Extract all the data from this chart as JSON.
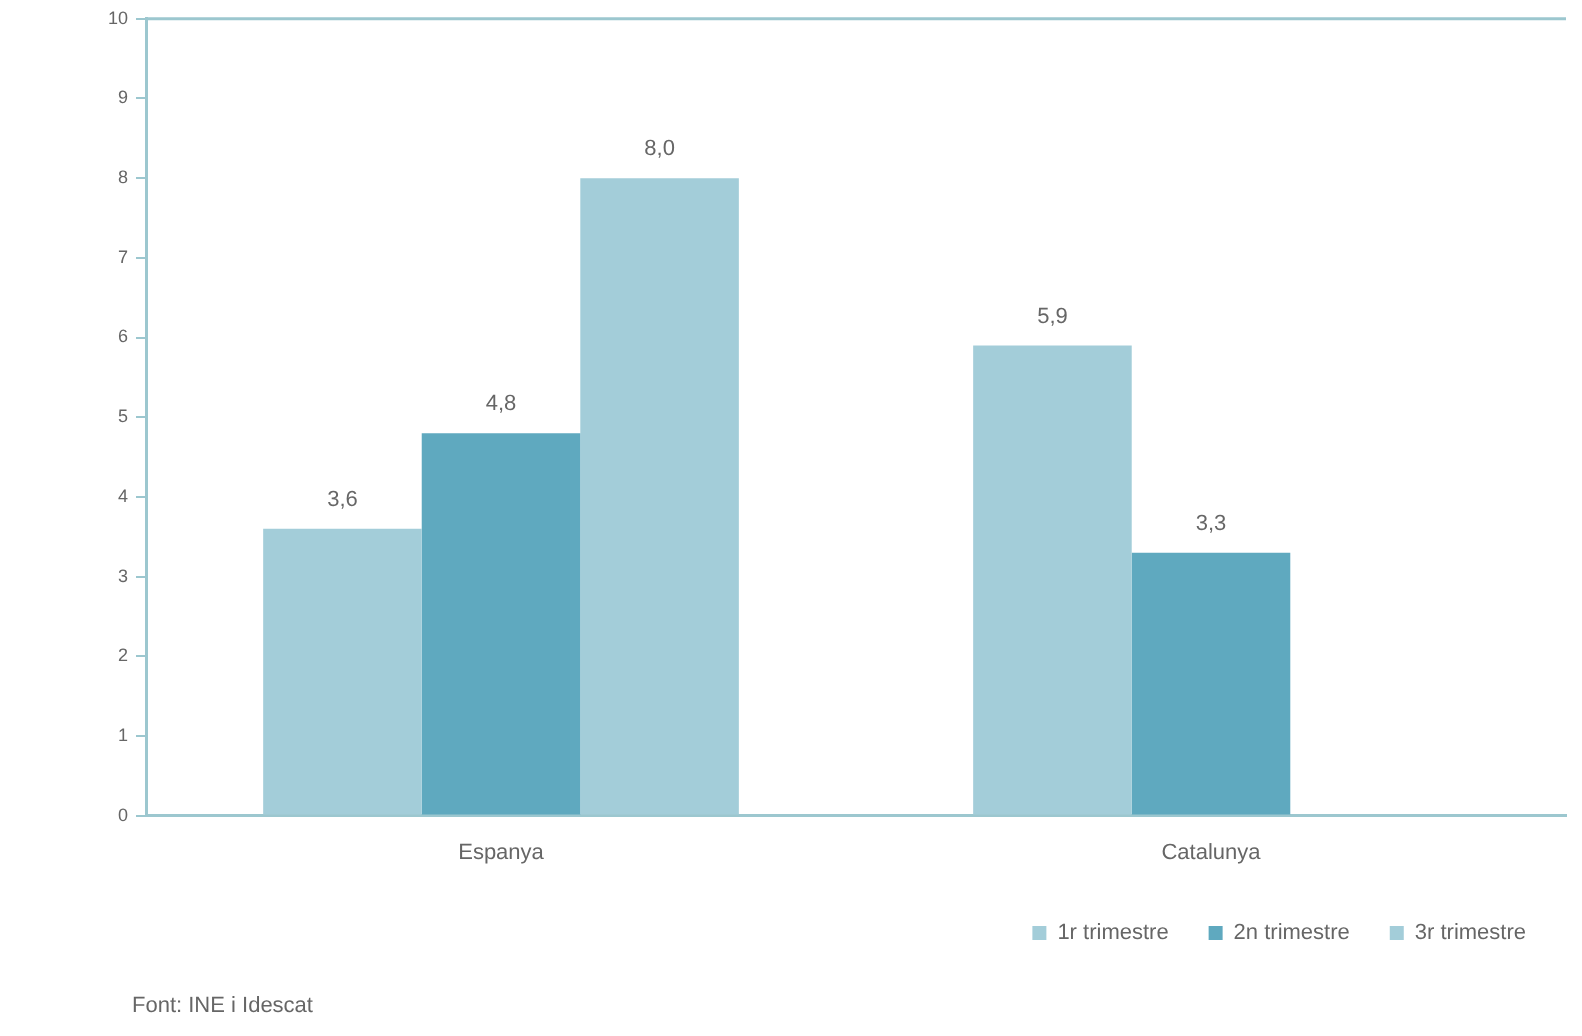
{
  "chart_data": {
    "type": "bar",
    "categories": [
      "Espanya",
      "Catalunya"
    ],
    "series": [
      {
        "name": "1r trimestre",
        "color": "#a3cdd9",
        "values": [
          3.6,
          5.9
        ],
        "value_labels": [
          "3,6",
          "5,9"
        ]
      },
      {
        "name": "2n trimestre",
        "color": "#5fa9bf",
        "values": [
          4.8,
          3.3
        ],
        "value_labels": [
          "4,8",
          "3,3"
        ]
      },
      {
        "name": "3r trimestre",
        "color": "#a3cdd9",
        "values": [
          8.0,
          null
        ],
        "value_labels": [
          "8,0",
          null
        ]
      }
    ],
    "ylim": [
      0,
      10
    ],
    "yticks": [
      0,
      1,
      2,
      3,
      4,
      5,
      6,
      7,
      8,
      9,
      10
    ],
    "grid": false,
    "legend": "bottom right",
    "annotations": [
      "Font: INE i Idescat"
    ]
  }
}
